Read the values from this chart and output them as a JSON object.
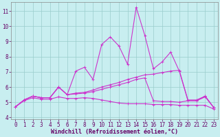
{
  "title": "",
  "xlabel": "Windchill (Refroidissement éolien,°C)",
  "background_color": "#c8eef0",
  "line_color": "#cc33cc",
  "grid_color": "#99cccc",
  "xlim": [
    -0.5,
    23.5
  ],
  "ylim": [
    3.9,
    11.6
  ],
  "yticks": [
    4,
    5,
    6,
    7,
    8,
    9,
    10,
    11
  ],
  "xticks": [
    0,
    1,
    2,
    3,
    4,
    5,
    6,
    7,
    8,
    9,
    10,
    11,
    12,
    13,
    14,
    15,
    16,
    17,
    18,
    19,
    20,
    21,
    22,
    23
  ],
  "series": [
    [
      4.7,
      5.15,
      5.4,
      5.3,
      5.3,
      6.0,
      5.5,
      7.05,
      7.3,
      6.5,
      8.8,
      9.3,
      8.7,
      7.5,
      11.25,
      9.4,
      7.2,
      7.65,
      8.3,
      7.05,
      5.1,
      5.1,
      5.4,
      4.65
    ],
    [
      4.7,
      5.15,
      5.4,
      5.3,
      5.3,
      6.0,
      5.5,
      5.6,
      5.65,
      5.8,
      6.0,
      6.15,
      6.3,
      6.5,
      6.65,
      6.8,
      6.85,
      6.95,
      7.05,
      7.1,
      5.15,
      5.15,
      5.4,
      4.65
    ],
    [
      4.7,
      5.1,
      5.3,
      5.2,
      5.2,
      5.35,
      5.25,
      5.25,
      5.3,
      5.25,
      5.15,
      5.05,
      4.95,
      4.9,
      4.9,
      4.9,
      4.85,
      4.85,
      4.85,
      4.8,
      4.8,
      4.8,
      4.8,
      4.55
    ],
    [
      4.7,
      5.15,
      5.4,
      5.3,
      5.3,
      6.0,
      5.5,
      5.55,
      5.6,
      5.7,
      5.85,
      6.0,
      6.15,
      6.3,
      6.5,
      6.6,
      5.1,
      5.05,
      5.05,
      5.0,
      5.1,
      5.1,
      5.35,
      4.65
    ]
  ],
  "marker": "+",
  "markersize": 3,
  "linewidth": 0.8,
  "xlabel_fontsize": 6.0,
  "tick_fontsize": 5.5
}
